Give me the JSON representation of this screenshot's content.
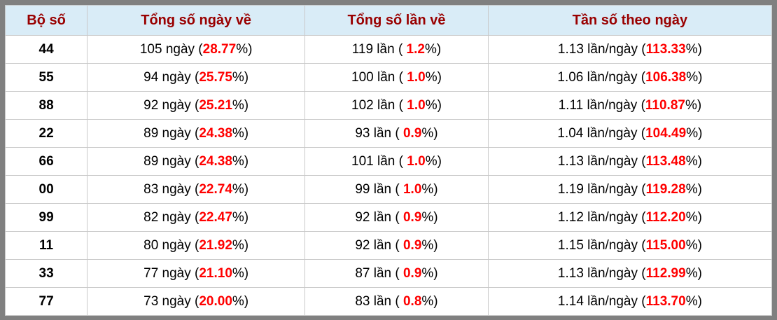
{
  "colors": {
    "frame": "#808080",
    "header_bg": "#d9ecf7",
    "header_text": "#990000",
    "highlight_pct": "#ff0000",
    "body_text": "#000000",
    "cell_border": "#c8c8c8"
  },
  "table": {
    "columns": [
      "Bộ số",
      "Tổng số ngày về",
      "Tổng số lần về",
      "Tần số theo ngày"
    ],
    "units": {
      "days": "ngày",
      "times": "lần",
      "freq": "lần/ngày"
    },
    "rows": [
      {
        "pair": "44",
        "days": "105",
        "days_pct": "28.77",
        "times": "119",
        "times_pct": "1.2",
        "freq": "1.13",
        "freq_pct": "113.33"
      },
      {
        "pair": "55",
        "days": "94",
        "days_pct": "25.75",
        "times": "100",
        "times_pct": "1.0",
        "freq": "1.06",
        "freq_pct": "106.38"
      },
      {
        "pair": "88",
        "days": "92",
        "days_pct": "25.21",
        "times": "102",
        "times_pct": "1.0",
        "freq": "1.11",
        "freq_pct": "110.87"
      },
      {
        "pair": "22",
        "days": "89",
        "days_pct": "24.38",
        "times": "93",
        "times_pct": "0.9",
        "freq": "1.04",
        "freq_pct": "104.49"
      },
      {
        "pair": "66",
        "days": "89",
        "days_pct": "24.38",
        "times": "101",
        "times_pct": "1.0",
        "freq": "1.13",
        "freq_pct": "113.48"
      },
      {
        "pair": "00",
        "days": "83",
        "days_pct": "22.74",
        "times": "99",
        "times_pct": "1.0",
        "freq": "1.19",
        "freq_pct": "119.28"
      },
      {
        "pair": "99",
        "days": "82",
        "days_pct": "22.47",
        "times": "92",
        "times_pct": "0.9",
        "freq": "1.12",
        "freq_pct": "112.20"
      },
      {
        "pair": "11",
        "days": "80",
        "days_pct": "21.92",
        "times": "92",
        "times_pct": "0.9",
        "freq": "1.15",
        "freq_pct": "115.00"
      },
      {
        "pair": "33",
        "days": "77",
        "days_pct": "21.10",
        "times": "87",
        "times_pct": "0.9",
        "freq": "1.13",
        "freq_pct": "112.99"
      },
      {
        "pair": "77",
        "days": "73",
        "days_pct": "20.00",
        "times": "83",
        "times_pct": "0.8",
        "freq": "1.14",
        "freq_pct": "113.70"
      }
    ]
  }
}
